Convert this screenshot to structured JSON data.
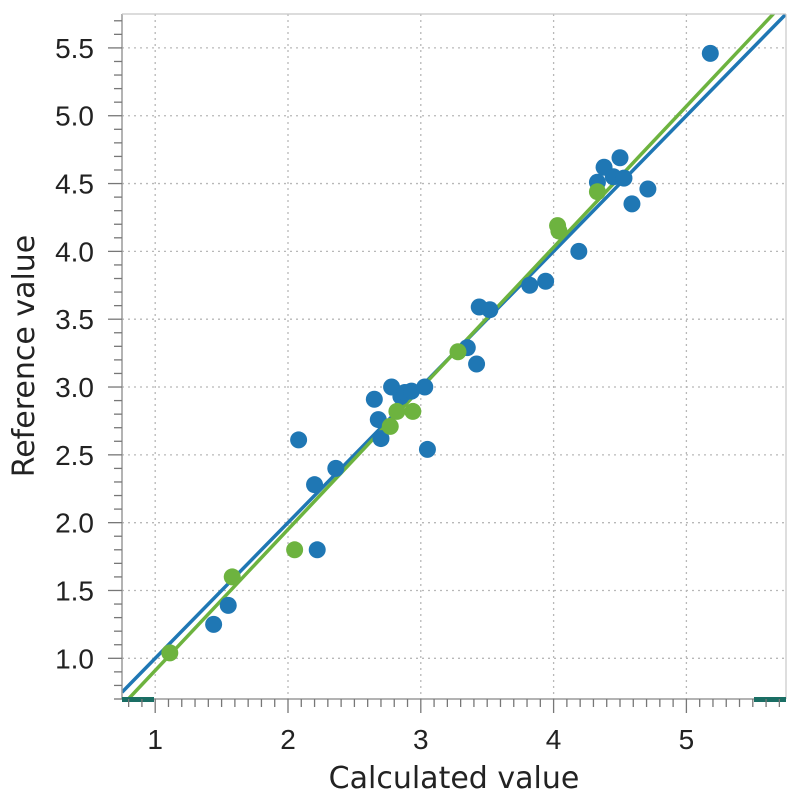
{
  "chart_data": {
    "type": "scatter",
    "xlabel": "Calculated value",
    "ylabel": "Reference value",
    "xlim": [
      0.75,
      5.75
    ],
    "ylim": [
      0.7,
      5.75
    ],
    "x_ticks": [
      1,
      2,
      3,
      4,
      5
    ],
    "y_ticks": [
      1.0,
      1.5,
      2.0,
      2.5,
      3.0,
      3.5,
      4.0,
      4.5,
      5.0,
      5.5
    ],
    "x_tick_labels": [
      "1",
      "2",
      "3",
      "4",
      "5"
    ],
    "y_tick_labels": [
      "1.0",
      "1.5",
      "2.0",
      "2.5",
      "3.0",
      "3.5",
      "4.0",
      "4.5",
      "5.0",
      "5.5"
    ],
    "grid": true,
    "series": [
      {
        "color": "#1f77b4",
        "points": [
          [
            1.44,
            1.25
          ],
          [
            1.55,
            1.39
          ],
          [
            2.08,
            2.61
          ],
          [
            2.2,
            2.28
          ],
          [
            2.22,
            1.8
          ],
          [
            2.36,
            2.4
          ],
          [
            2.65,
            2.91
          ],
          [
            2.68,
            2.76
          ],
          [
            2.7,
            2.62
          ],
          [
            2.78,
            3.0
          ],
          [
            2.85,
            2.93
          ],
          [
            2.88,
            2.96
          ],
          [
            2.93,
            2.97
          ],
          [
            3.03,
            3.0
          ],
          [
            3.05,
            2.54
          ],
          [
            3.35,
            3.29
          ],
          [
            3.42,
            3.17
          ],
          [
            3.44,
            3.59
          ],
          [
            3.52,
            3.57
          ],
          [
            3.82,
            3.75
          ],
          [
            3.94,
            3.78
          ],
          [
            4.19,
            4.0
          ],
          [
            4.33,
            4.51
          ],
          [
            4.38,
            4.62
          ],
          [
            4.45,
            4.55
          ],
          [
            4.5,
            4.69
          ],
          [
            4.53,
            4.54
          ],
          [
            4.59,
            4.35
          ],
          [
            4.71,
            4.46
          ],
          [
            5.18,
            5.46
          ]
        ],
        "fit_line": {
          "slope": 1.0,
          "intercept": 0.0
        }
      },
      {
        "color": "#6db33f",
        "points": [
          [
            1.11,
            1.04
          ],
          [
            1.58,
            1.6
          ],
          [
            2.05,
            1.8
          ],
          [
            2.77,
            2.71
          ],
          [
            2.82,
            2.82
          ],
          [
            2.94,
            2.82
          ],
          [
            3.28,
            3.26
          ],
          [
            4.03,
            4.19
          ],
          [
            4.04,
            4.15
          ],
          [
            4.33,
            4.44
          ]
        ],
        "fit_line": {
          "slope": 1.04,
          "intercept": -0.13
        }
      }
    ],
    "axis_markers_color": "#1a6e64"
  }
}
